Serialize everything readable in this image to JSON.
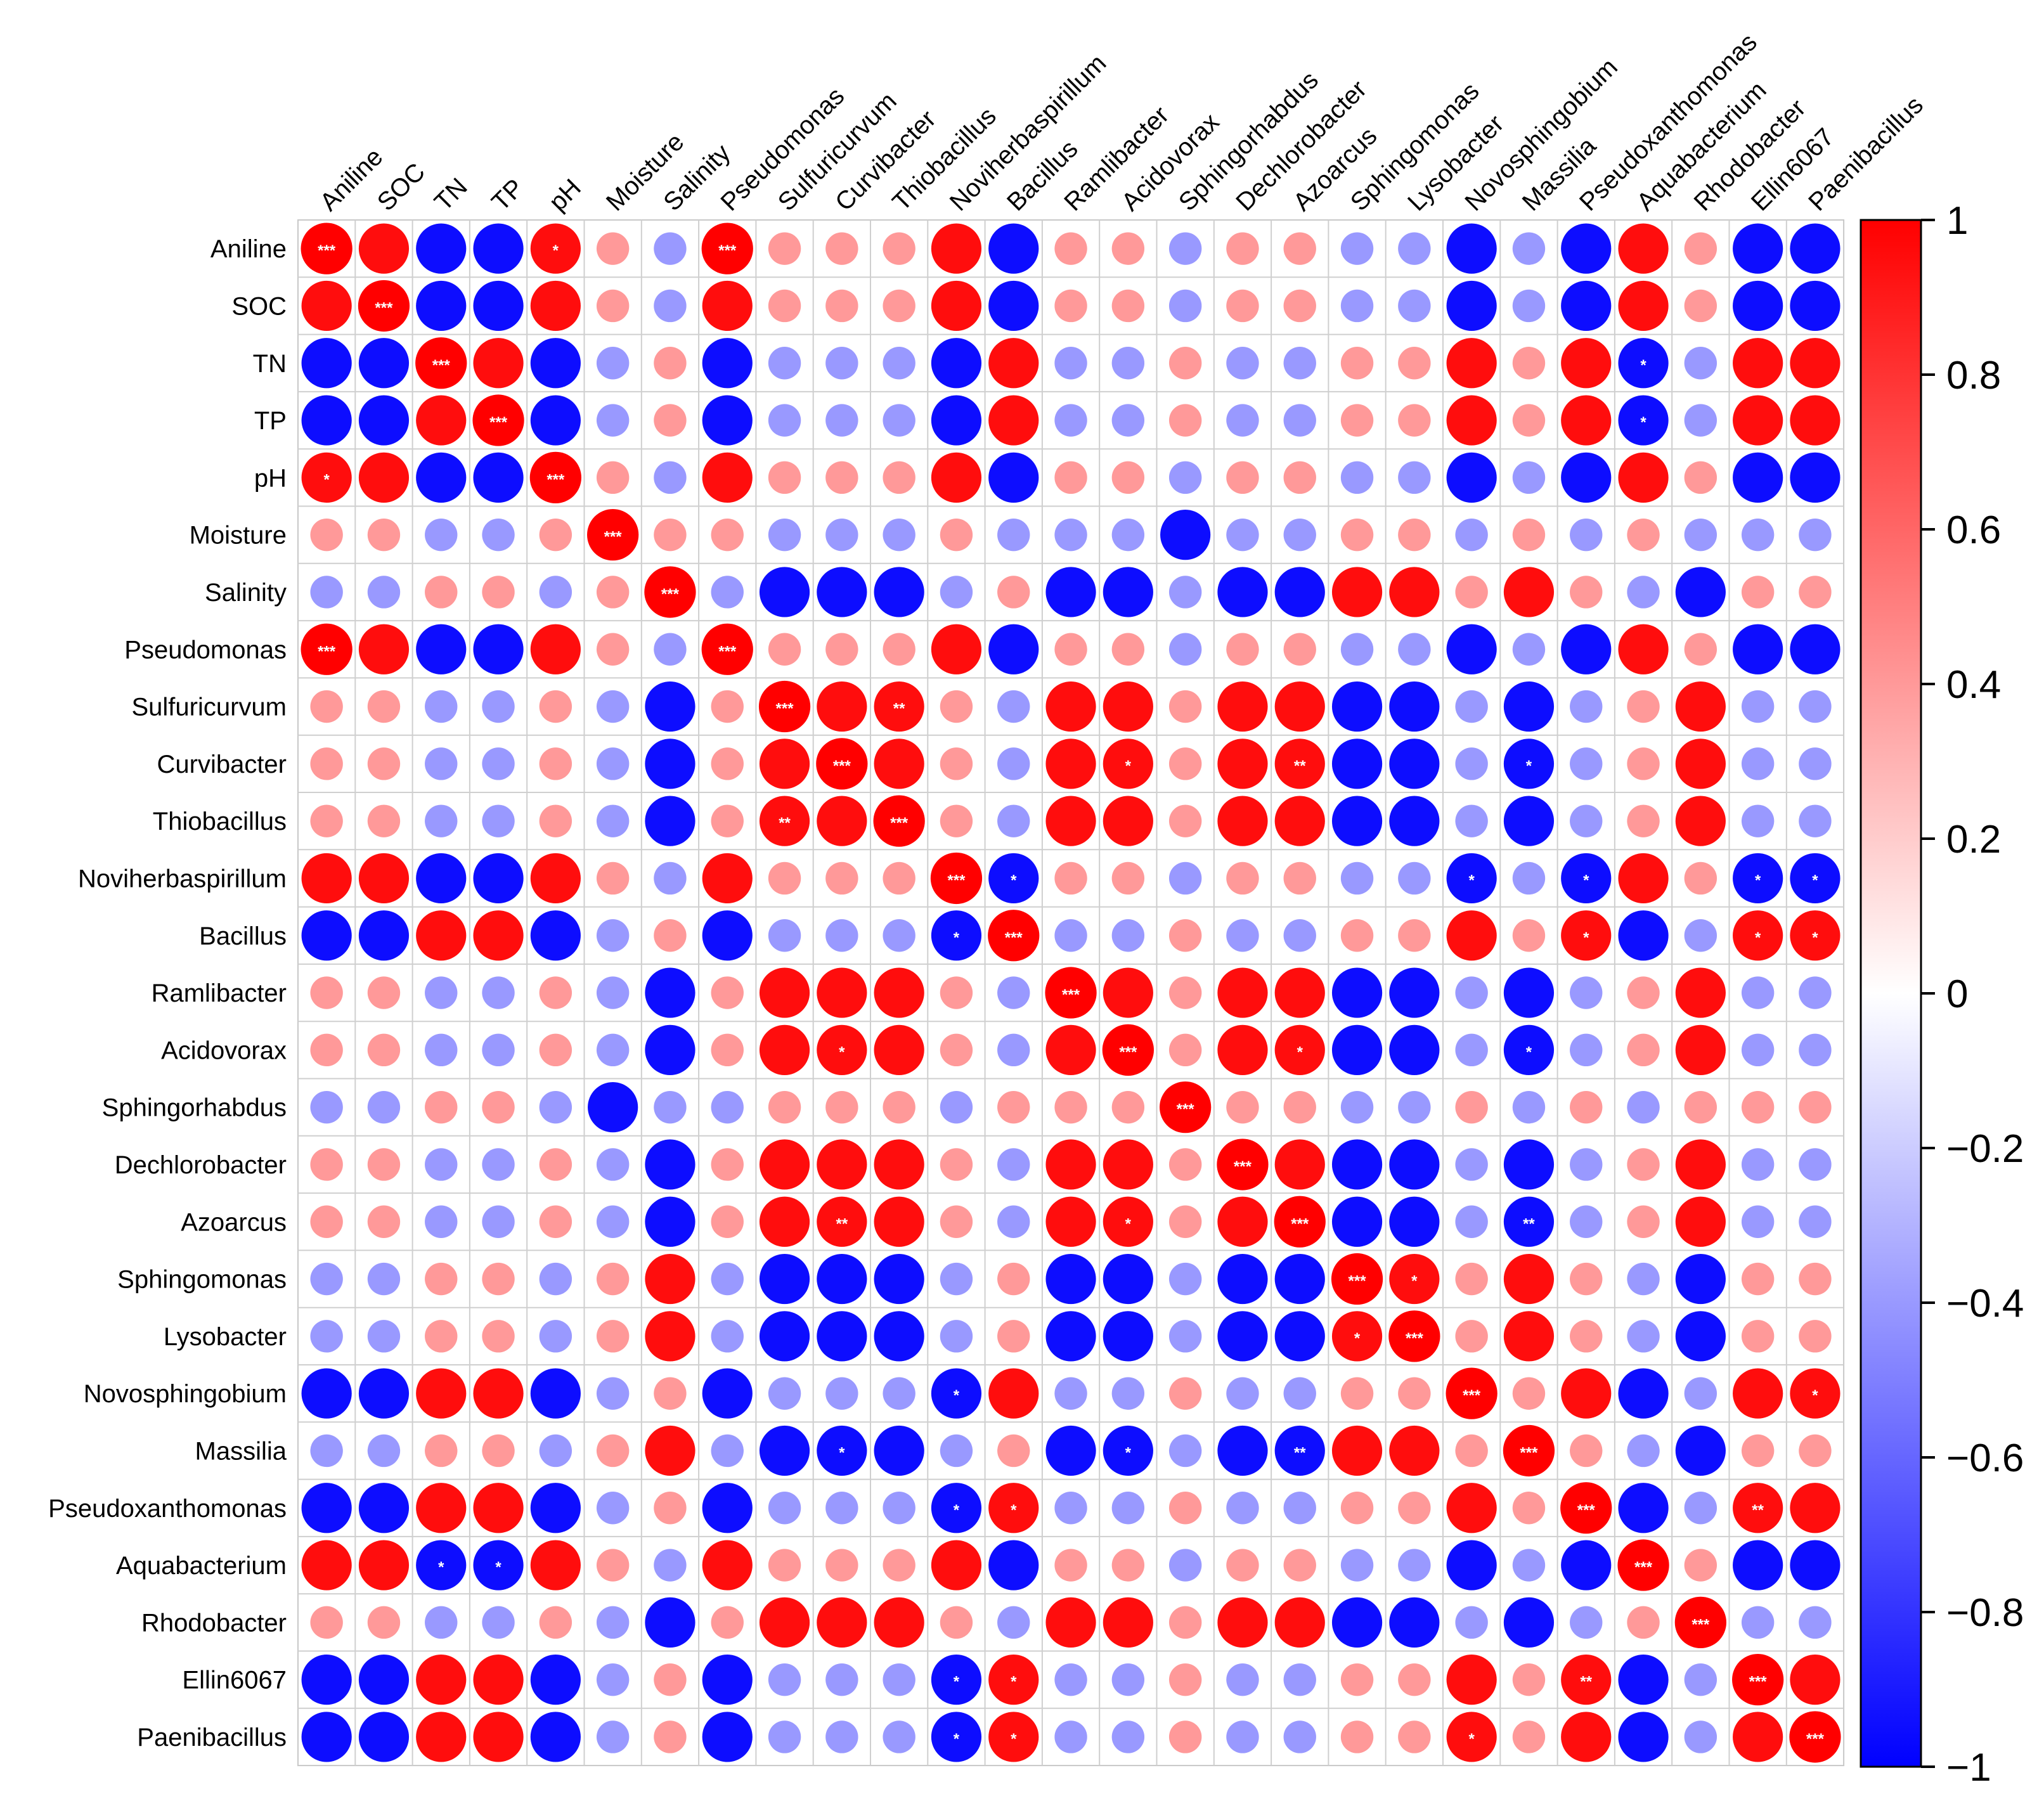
{
  "chart_data": {
    "type": "heatmap",
    "style": "correlation-circle-matrix",
    "labels": [
      "Aniline",
      "SOC",
      "TN",
      "TP",
      "pH",
      "Moisture",
      "Salinity",
      "Pseudomonas",
      "Sulfuricurvum",
      "Curvibacter",
      "Thiobacillus",
      "Noviherbaspirillum",
      "Bacillus",
      "Ramlibacter",
      "Acidovorax",
      "Sphingorhabdus",
      "Dechlorobacter",
      "Azoarcus",
      "Sphingomonas",
      "Lysobacter",
      "Novosphingobium",
      "Massilia",
      "Pseudoxanthomonas",
      "Aquabacterium",
      "Rhodobacter",
      "Ellin6067",
      "Paenibacillus"
    ],
    "colorbar": {
      "range": [
        -1,
        1
      ],
      "ticks": [
        "1",
        "0.8",
        "0.6",
        "0.4",
        "0.2",
        "0",
        "−0.2",
        "−0.4",
        "−0.6",
        "−0.8",
        "−1"
      ],
      "colors": {
        "low": "#0000ff",
        "mid": "#ffffff",
        "high": "#ff0000"
      }
    },
    "matrix": [
      [
        1,
        0.95,
        -0.95,
        -0.95,
        0.95,
        0.4,
        -0.4,
        1,
        0.4,
        0.4,
        0.4,
        0.95,
        -0.95,
        0.4,
        0.4,
        -0.4,
        0.4,
        0.4,
        -0.4,
        -0.4,
        -0.95,
        -0.4,
        -0.95,
        0.95,
        0.4,
        -0.95,
        -0.95
      ],
      [
        0.95,
        1,
        -0.95,
        -0.95,
        0.95,
        0.4,
        -0.4,
        0.95,
        0.4,
        0.4,
        0.4,
        0.95,
        -0.95,
        0.4,
        0.4,
        -0.4,
        0.4,
        0.4,
        -0.4,
        -0.4,
        -0.95,
        -0.4,
        -0.95,
        0.95,
        0.4,
        -0.95,
        -0.95
      ],
      [
        -0.95,
        -0.95,
        1,
        0.95,
        -0.95,
        -0.4,
        0.4,
        -0.95,
        -0.4,
        -0.4,
        -0.4,
        -0.95,
        0.95,
        -0.4,
        -0.4,
        0.4,
        -0.4,
        -0.4,
        0.4,
        0.4,
        0.95,
        0.4,
        0.95,
        -0.95,
        -0.4,
        0.95,
        0.95
      ],
      [
        -0.95,
        -0.95,
        0.95,
        1,
        -0.95,
        -0.4,
        0.4,
        -0.95,
        -0.4,
        -0.4,
        -0.4,
        -0.95,
        0.95,
        -0.4,
        -0.4,
        0.4,
        -0.4,
        -0.4,
        0.4,
        0.4,
        0.95,
        0.4,
        0.95,
        -0.95,
        -0.4,
        0.95,
        0.95
      ],
      [
        0.95,
        0.95,
        -0.95,
        -0.95,
        1,
        0.4,
        -0.4,
        0.95,
        0.4,
        0.4,
        0.4,
        0.95,
        -0.95,
        0.4,
        0.4,
        -0.4,
        0.4,
        0.4,
        -0.4,
        -0.4,
        -0.95,
        -0.4,
        -0.95,
        0.95,
        0.4,
        -0.95,
        -0.95
      ],
      [
        0.4,
        0.4,
        -0.4,
        -0.4,
        0.4,
        1,
        0.4,
        0.4,
        -0.4,
        -0.4,
        -0.4,
        0.4,
        -0.4,
        -0.4,
        -0.4,
        -0.95,
        -0.4,
        -0.4,
        0.4,
        0.4,
        -0.4,
        0.4,
        -0.4,
        0.4,
        -0.4,
        -0.4,
        -0.4
      ],
      [
        -0.4,
        -0.4,
        0.4,
        0.4,
        -0.4,
        0.4,
        1,
        -0.4,
        -0.95,
        -0.95,
        -0.95,
        -0.4,
        0.4,
        -0.95,
        -0.95,
        -0.4,
        -0.95,
        -0.95,
        0.95,
        0.95,
        0.4,
        0.95,
        0.4,
        -0.4,
        -0.95,
        0.4,
        0.4
      ],
      [
        1,
        0.95,
        -0.95,
        -0.95,
        0.95,
        0.4,
        -0.4,
        1,
        0.4,
        0.4,
        0.4,
        0.95,
        -0.95,
        0.4,
        0.4,
        -0.4,
        0.4,
        0.4,
        -0.4,
        -0.4,
        -0.95,
        -0.4,
        -0.95,
        0.95,
        0.4,
        -0.95,
        -0.95
      ],
      [
        0.4,
        0.4,
        -0.4,
        -0.4,
        0.4,
        -0.4,
        -0.95,
        0.4,
        1,
        0.95,
        0.95,
        0.4,
        -0.4,
        0.95,
        0.95,
        0.4,
        0.95,
        0.95,
        -0.95,
        -0.95,
        -0.4,
        -0.95,
        -0.4,
        0.4,
        0.95,
        -0.4,
        -0.4
      ],
      [
        0.4,
        0.4,
        -0.4,
        -0.4,
        0.4,
        -0.4,
        -0.95,
        0.4,
        0.95,
        1,
        0.95,
        0.4,
        -0.4,
        0.95,
        0.95,
        0.4,
        0.95,
        0.95,
        -0.95,
        -0.95,
        -0.4,
        -0.95,
        -0.4,
        0.4,
        0.95,
        -0.4,
        -0.4
      ],
      [
        0.4,
        0.4,
        -0.4,
        -0.4,
        0.4,
        -0.4,
        -0.95,
        0.4,
        0.95,
        0.95,
        1,
        0.4,
        -0.4,
        0.95,
        0.95,
        0.4,
        0.95,
        0.95,
        -0.95,
        -0.95,
        -0.4,
        -0.95,
        -0.4,
        0.4,
        0.95,
        -0.4,
        -0.4
      ],
      [
        0.95,
        0.95,
        -0.95,
        -0.95,
        0.95,
        0.4,
        -0.4,
        0.95,
        0.4,
        0.4,
        0.4,
        1,
        -0.95,
        0.4,
        0.4,
        -0.4,
        0.4,
        0.4,
        -0.4,
        -0.4,
        -0.95,
        -0.4,
        -0.95,
        0.95,
        0.4,
        -0.95,
        -0.95
      ],
      [
        -0.95,
        -0.95,
        0.95,
        0.95,
        -0.95,
        -0.4,
        0.4,
        -0.95,
        -0.4,
        -0.4,
        -0.4,
        -0.95,
        1,
        -0.4,
        -0.4,
        0.4,
        -0.4,
        -0.4,
        0.4,
        0.4,
        0.95,
        0.4,
        0.95,
        -0.95,
        -0.4,
        0.95,
        0.95
      ],
      [
        0.4,
        0.4,
        -0.4,
        -0.4,
        0.4,
        -0.4,
        -0.95,
        0.4,
        0.95,
        0.95,
        0.95,
        0.4,
        -0.4,
        1,
        0.95,
        0.4,
        0.95,
        0.95,
        -0.95,
        -0.95,
        -0.4,
        -0.95,
        -0.4,
        0.4,
        0.95,
        -0.4,
        -0.4
      ],
      [
        0.4,
        0.4,
        -0.4,
        -0.4,
        0.4,
        -0.4,
        -0.95,
        0.4,
        0.95,
        0.95,
        0.95,
        0.4,
        -0.4,
        0.95,
        1,
        0.4,
        0.95,
        0.95,
        -0.95,
        -0.95,
        -0.4,
        -0.95,
        -0.4,
        0.4,
        0.95,
        -0.4,
        -0.4
      ],
      [
        -0.4,
        -0.4,
        0.4,
        0.4,
        -0.4,
        -0.95,
        -0.4,
        -0.4,
        0.4,
        0.4,
        0.4,
        -0.4,
        0.4,
        0.4,
        0.4,
        1,
        0.4,
        0.4,
        -0.4,
        -0.4,
        0.4,
        -0.4,
        0.4,
        -0.4,
        0.4,
        0.4,
        0.4
      ],
      [
        0.4,
        0.4,
        -0.4,
        -0.4,
        0.4,
        -0.4,
        -0.95,
        0.4,
        0.95,
        0.95,
        0.95,
        0.4,
        -0.4,
        0.95,
        0.95,
        0.4,
        1,
        0.95,
        -0.95,
        -0.95,
        -0.4,
        -0.95,
        -0.4,
        0.4,
        0.95,
        -0.4,
        -0.4
      ],
      [
        0.4,
        0.4,
        -0.4,
        -0.4,
        0.4,
        -0.4,
        -0.95,
        0.4,
        0.95,
        0.95,
        0.95,
        0.4,
        -0.4,
        0.95,
        0.95,
        0.4,
        0.95,
        1,
        -0.95,
        -0.95,
        -0.4,
        -0.95,
        -0.4,
        0.4,
        0.95,
        -0.4,
        -0.4
      ],
      [
        -0.4,
        -0.4,
        0.4,
        0.4,
        -0.4,
        0.4,
        0.95,
        -0.4,
        -0.95,
        -0.95,
        -0.95,
        -0.4,
        0.4,
        -0.95,
        -0.95,
        -0.4,
        -0.95,
        -0.95,
        1,
        0.95,
        0.4,
        0.95,
        0.4,
        -0.4,
        -0.95,
        0.4,
        0.4
      ],
      [
        -0.4,
        -0.4,
        0.4,
        0.4,
        -0.4,
        0.4,
        0.95,
        -0.4,
        -0.95,
        -0.95,
        -0.95,
        -0.4,
        0.4,
        -0.95,
        -0.95,
        -0.4,
        -0.95,
        -0.95,
        0.95,
        1,
        0.4,
        0.95,
        0.4,
        -0.4,
        -0.95,
        0.4,
        0.4
      ],
      [
        -0.95,
        -0.95,
        0.95,
        0.95,
        -0.95,
        -0.4,
        0.4,
        -0.95,
        -0.4,
        -0.4,
        -0.4,
        -0.95,
        0.95,
        -0.4,
        -0.4,
        0.4,
        -0.4,
        -0.4,
        0.4,
        0.4,
        1,
        0.4,
        0.95,
        -0.95,
        -0.4,
        0.95,
        0.95
      ],
      [
        -0.4,
        -0.4,
        0.4,
        0.4,
        -0.4,
        0.4,
        0.95,
        -0.4,
        -0.95,
        -0.95,
        -0.95,
        -0.4,
        0.4,
        -0.95,
        -0.95,
        -0.4,
        -0.95,
        -0.95,
        0.95,
        0.95,
        0.4,
        1,
        0.4,
        -0.4,
        -0.95,
        0.4,
        0.4
      ],
      [
        -0.95,
        -0.95,
        0.95,
        0.95,
        -0.95,
        -0.4,
        0.4,
        -0.95,
        -0.4,
        -0.4,
        -0.4,
        -0.95,
        0.95,
        -0.4,
        -0.4,
        0.4,
        -0.4,
        -0.4,
        0.4,
        0.4,
        0.95,
        0.4,
        1,
        -0.95,
        -0.4,
        0.95,
        0.95
      ],
      [
        0.95,
        0.95,
        -0.95,
        -0.95,
        0.95,
        0.4,
        -0.4,
        0.95,
        0.4,
        0.4,
        0.4,
        0.95,
        -0.95,
        0.4,
        0.4,
        -0.4,
        0.4,
        0.4,
        -0.4,
        -0.4,
        -0.95,
        -0.4,
        -0.95,
        1,
        0.4,
        -0.95,
        -0.95
      ],
      [
        0.4,
        0.4,
        -0.4,
        -0.4,
        0.4,
        -0.4,
        -0.95,
        0.4,
        0.95,
        0.95,
        0.95,
        0.4,
        -0.4,
        0.95,
        0.95,
        0.4,
        0.95,
        0.95,
        -0.95,
        -0.95,
        -0.4,
        -0.95,
        -0.4,
        0.4,
        1,
        -0.4,
        -0.4
      ],
      [
        -0.95,
        -0.95,
        0.95,
        0.95,
        -0.95,
        -0.4,
        0.4,
        -0.95,
        -0.4,
        -0.4,
        -0.4,
        -0.95,
        0.95,
        -0.4,
        -0.4,
        0.4,
        -0.4,
        -0.4,
        0.4,
        0.4,
        0.95,
        0.4,
        0.95,
        -0.95,
        -0.4,
        1,
        0.95
      ],
      [
        -0.95,
        -0.95,
        0.95,
        0.95,
        -0.95,
        -0.4,
        0.4,
        -0.95,
        -0.4,
        -0.4,
        -0.4,
        -0.95,
        0.95,
        -0.4,
        -0.4,
        0.4,
        -0.4,
        -0.4,
        0.4,
        0.4,
        0.95,
        0.4,
        0.95,
        -0.95,
        -0.4,
        0.95,
        1
      ]
    ],
    "significance": [
      {
        "row": 0,
        "col": 0,
        "mark": "***"
      },
      {
        "row": 0,
        "col": 4,
        "mark": "*"
      },
      {
        "row": 0,
        "col": 7,
        "mark": "***"
      },
      {
        "row": 1,
        "col": 1,
        "mark": "***"
      },
      {
        "row": 2,
        "col": 2,
        "mark": "***"
      },
      {
        "row": 2,
        "col": 23,
        "mark": "*"
      },
      {
        "row": 3,
        "col": 3,
        "mark": "***"
      },
      {
        "row": 3,
        "col": 23,
        "mark": "*"
      },
      {
        "row": 4,
        "col": 0,
        "mark": "*"
      },
      {
        "row": 4,
        "col": 4,
        "mark": "***"
      },
      {
        "row": 5,
        "col": 5,
        "mark": "***"
      },
      {
        "row": 6,
        "col": 6,
        "mark": "***"
      },
      {
        "row": 7,
        "col": 0,
        "mark": "***"
      },
      {
        "row": 7,
        "col": 7,
        "mark": "***"
      },
      {
        "row": 8,
        "col": 8,
        "mark": "***"
      },
      {
        "row": 8,
        "col": 10,
        "mark": "**"
      },
      {
        "row": 9,
        "col": 9,
        "mark": "***"
      },
      {
        "row": 9,
        "col": 14,
        "mark": "*"
      },
      {
        "row": 9,
        "col": 17,
        "mark": "**"
      },
      {
        "row": 9,
        "col": 21,
        "mark": "*"
      },
      {
        "row": 10,
        "col": 8,
        "mark": "**"
      },
      {
        "row": 10,
        "col": 10,
        "mark": "***"
      },
      {
        "row": 11,
        "col": 11,
        "mark": "***"
      },
      {
        "row": 11,
        "col": 12,
        "mark": "*"
      },
      {
        "row": 11,
        "col": 20,
        "mark": "*"
      },
      {
        "row": 11,
        "col": 22,
        "mark": "*"
      },
      {
        "row": 11,
        "col": 25,
        "mark": "*"
      },
      {
        "row": 11,
        "col": 26,
        "mark": "*"
      },
      {
        "row": 12,
        "col": 11,
        "mark": "*"
      },
      {
        "row": 12,
        "col": 12,
        "mark": "***"
      },
      {
        "row": 12,
        "col": 22,
        "mark": "*"
      },
      {
        "row": 12,
        "col": 25,
        "mark": "*"
      },
      {
        "row": 12,
        "col": 26,
        "mark": "*"
      },
      {
        "row": 13,
        "col": 13,
        "mark": "***"
      },
      {
        "row": 14,
        "col": 9,
        "mark": "*"
      },
      {
        "row": 14,
        "col": 14,
        "mark": "***"
      },
      {
        "row": 14,
        "col": 17,
        "mark": "*"
      },
      {
        "row": 14,
        "col": 21,
        "mark": "*"
      },
      {
        "row": 15,
        "col": 15,
        "mark": "***"
      },
      {
        "row": 16,
        "col": 16,
        "mark": "***"
      },
      {
        "row": 17,
        "col": 9,
        "mark": "**"
      },
      {
        "row": 17,
        "col": 14,
        "mark": "*"
      },
      {
        "row": 17,
        "col": 17,
        "mark": "***"
      },
      {
        "row": 17,
        "col": 21,
        "mark": "**"
      },
      {
        "row": 18,
        "col": 18,
        "mark": "***"
      },
      {
        "row": 18,
        "col": 19,
        "mark": "*"
      },
      {
        "row": 19,
        "col": 18,
        "mark": "*"
      },
      {
        "row": 19,
        "col": 19,
        "mark": "***"
      },
      {
        "row": 20,
        "col": 11,
        "mark": "*"
      },
      {
        "row": 20,
        "col": 20,
        "mark": "***"
      },
      {
        "row": 20,
        "col": 26,
        "mark": "*"
      },
      {
        "row": 21,
        "col": 9,
        "mark": "*"
      },
      {
        "row": 21,
        "col": 14,
        "mark": "*"
      },
      {
        "row": 21,
        "col": 17,
        "mark": "**"
      },
      {
        "row": 21,
        "col": 21,
        "mark": "***"
      },
      {
        "row": 22,
        "col": 11,
        "mark": "*"
      },
      {
        "row": 22,
        "col": 12,
        "mark": "*"
      },
      {
        "row": 22,
        "col": 22,
        "mark": "***"
      },
      {
        "row": 22,
        "col": 25,
        "mark": "**"
      },
      {
        "row": 23,
        "col": 2,
        "mark": "*"
      },
      {
        "row": 23,
        "col": 3,
        "mark": "*"
      },
      {
        "row": 23,
        "col": 23,
        "mark": "***"
      },
      {
        "row": 24,
        "col": 24,
        "mark": "***"
      },
      {
        "row": 25,
        "col": 11,
        "mark": "*"
      },
      {
        "row": 25,
        "col": 12,
        "mark": "*"
      },
      {
        "row": 25,
        "col": 22,
        "mark": "**"
      },
      {
        "row": 25,
        "col": 25,
        "mark": "***"
      },
      {
        "row": 26,
        "col": 11,
        "mark": "*"
      },
      {
        "row": 26,
        "col": 12,
        "mark": "*"
      },
      {
        "row": 26,
        "col": 20,
        "mark": "*"
      },
      {
        "row": 26,
        "col": 26,
        "mark": "***"
      }
    ]
  }
}
